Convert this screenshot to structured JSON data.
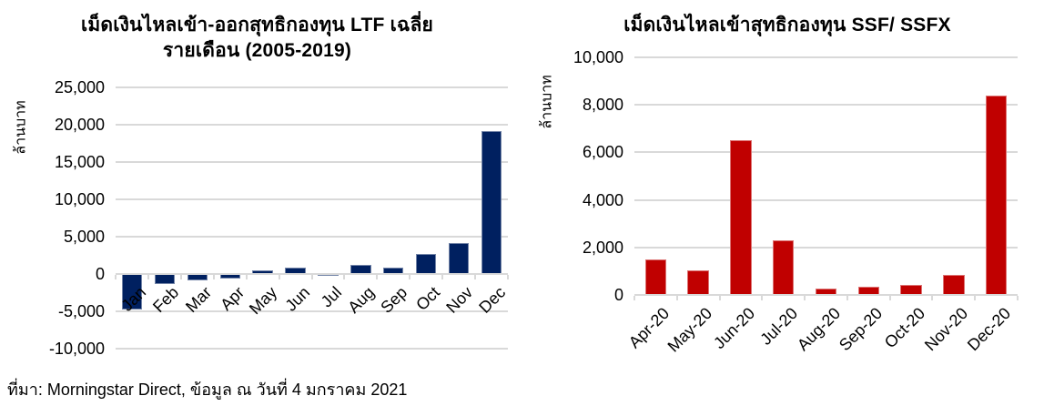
{
  "page": {
    "background": "#ffffff"
  },
  "colors": {
    "navy_bar": "#002060",
    "red_bar": "#c00000",
    "gridline": "#d9d9d9",
    "text": "#000000"
  },
  "source_note": "ที่มา: Morningstar Direct, ข้อมูล ณ วันที่ 4 มกราคม 2021",
  "chart_data": [
    {
      "type": "bar",
      "title_line1": "เม็ดเงินไหลเข้า-ออกสุทธิกองทุน  LTF เฉลี่ย",
      "title_line2": "รายเดือน (2005-2019)",
      "ylabel": "ล้านบาท",
      "xlabel": "",
      "categories": [
        "Jan",
        "Feb",
        "Mar",
        "Apr",
        "May",
        "Jun",
        "Jul",
        "Aug",
        "Sep",
        "Oct",
        "Nov",
        "Dec"
      ],
      "values": [
        -4800,
        -1400,
        -800,
        -600,
        500,
        800,
        -200,
        1200,
        800,
        2700,
        4100,
        19200
      ],
      "ylim": [
        -10000,
        25000
      ],
      "yticks": [
        -10000,
        -5000,
        0,
        5000,
        10000,
        15000,
        20000,
        25000
      ],
      "ytick_labels": [
        "-10,000",
        "-5,000",
        "0",
        "5,000",
        "10,000",
        "15,000",
        "20,000",
        "25,000"
      ],
      "bar_color": "#002060",
      "grid": true,
      "legend": null
    },
    {
      "type": "bar",
      "title_line1": "เม็ดเงินไหลเข้าสุทธิกองทุน  SSF/ SSFX",
      "title_line2": "",
      "ylabel": "ล้านบาท",
      "xlabel": "",
      "categories": [
        "Apr-20",
        "May-20",
        "Jun-20",
        "Jul-20",
        "Aug-20",
        "Sep-20",
        "Oct-20",
        "Nov-20",
        "Dec-20"
      ],
      "values": [
        1500,
        1050,
        6500,
        2300,
        270,
        350,
        430,
        850,
        8400
      ],
      "ylim": [
        0,
        10000
      ],
      "yticks": [
        0,
        2000,
        4000,
        6000,
        8000,
        10000
      ],
      "ytick_labels": [
        "0",
        "2,000",
        "4,000",
        "6,000",
        "8,000",
        "10,000"
      ],
      "bar_color": "#c00000",
      "grid": true,
      "legend": null
    }
  ]
}
